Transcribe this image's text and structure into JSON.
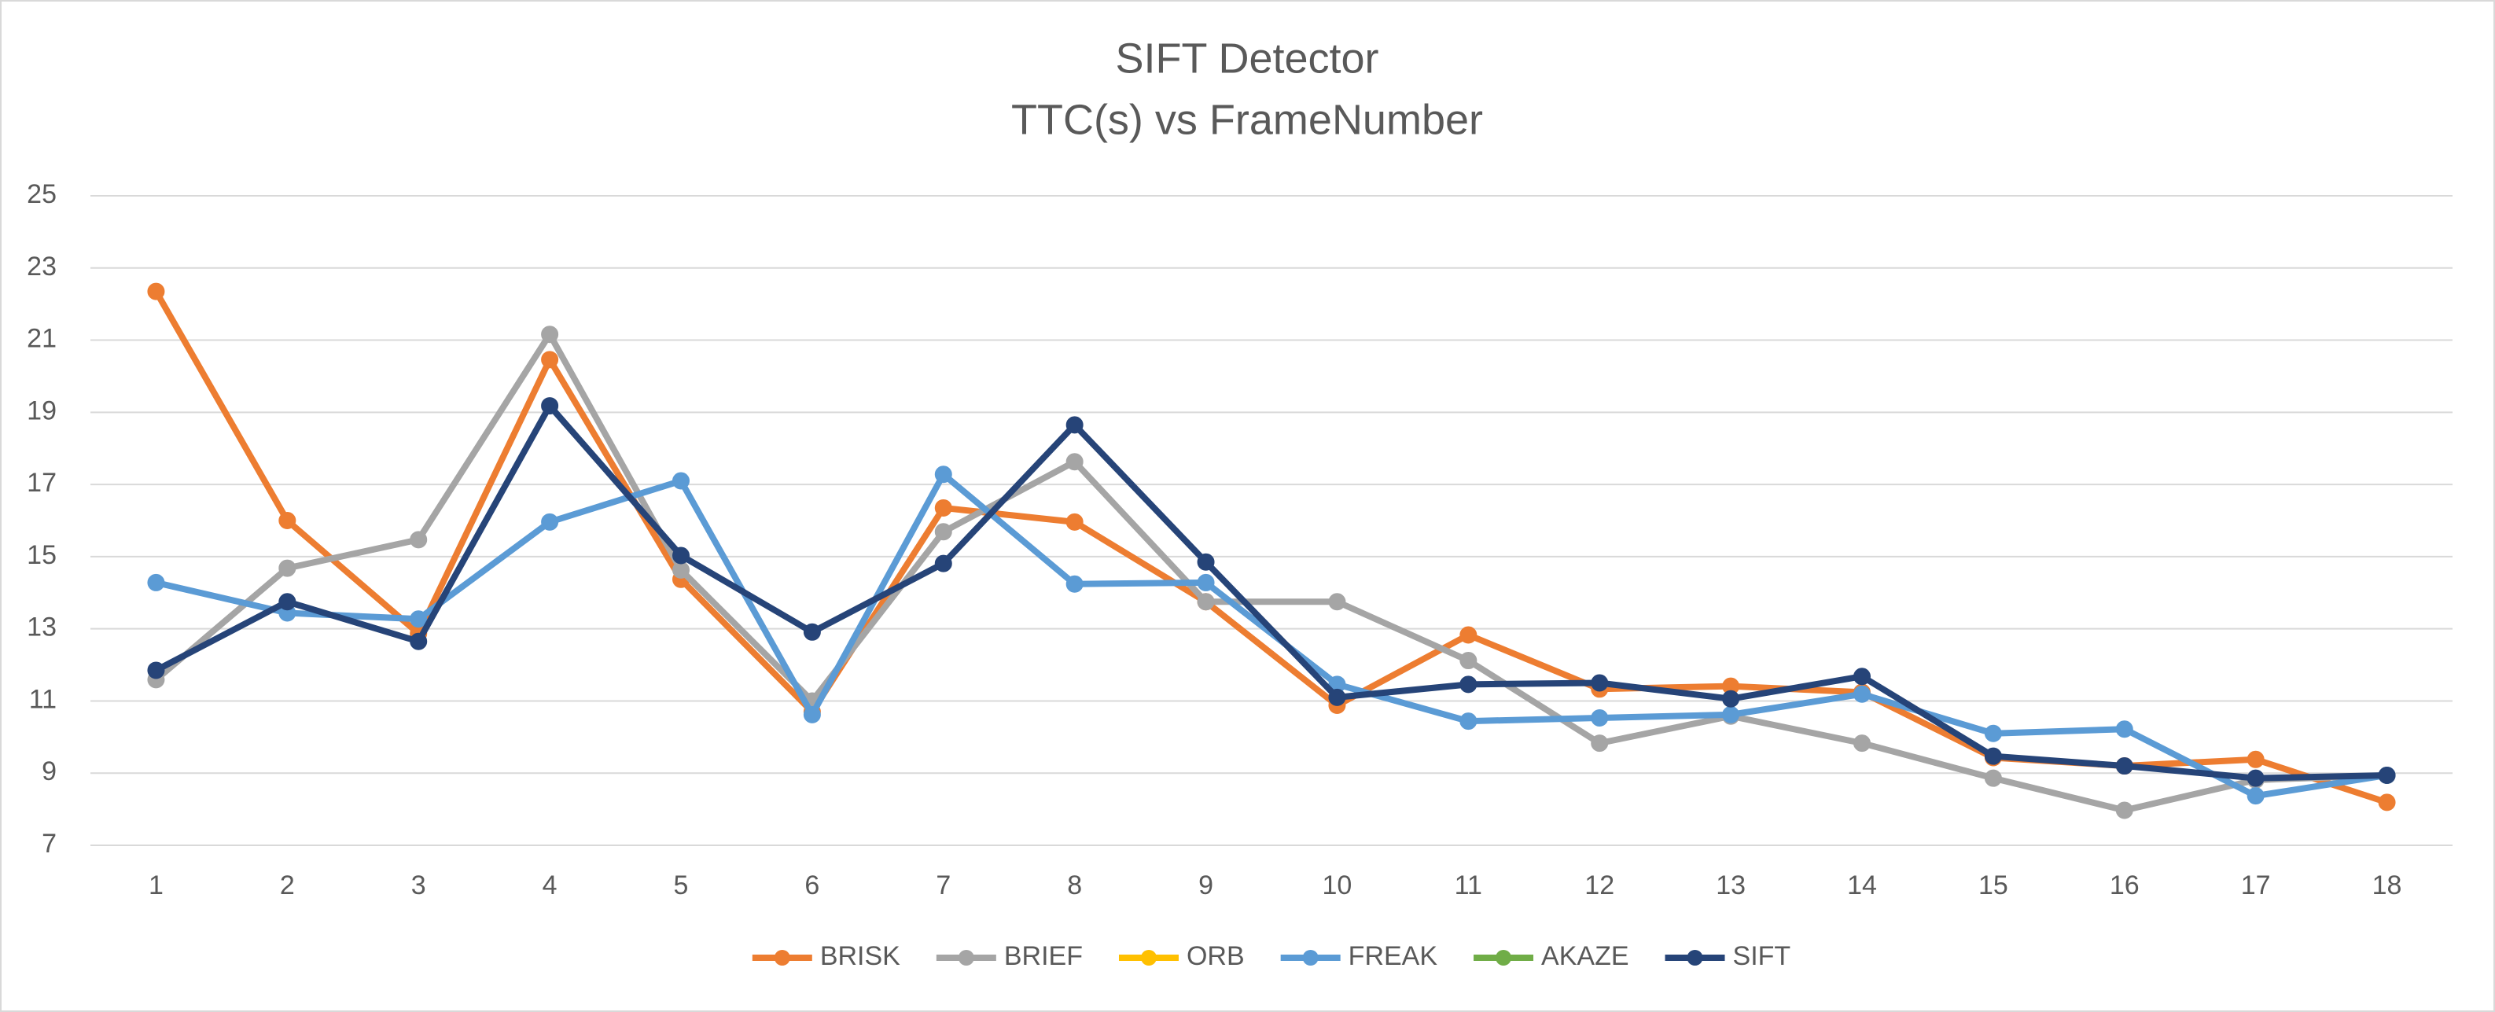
{
  "chart_data": {
    "type": "line",
    "title": "SIFT Detector",
    "subtitle": "TTC(s) vs FrameNumber",
    "categories": [
      "1",
      "2",
      "3",
      "4",
      "5",
      "6",
      "7",
      "8",
      "9",
      "10",
      "11",
      "12",
      "13",
      "14",
      "15",
      "16",
      "17",
      "18"
    ],
    "series": [
      {
        "name": "BRISK",
        "color": "#ed7d31",
        "values": [
          22.35,
          16.0,
          12.87,
          20.46,
          14.37,
          10.7,
          16.35,
          15.96,
          13.75,
          10.88,
          12.83,
          11.33,
          11.41,
          11.24,
          9.43,
          9.2,
          9.38,
          8.19
        ]
      },
      {
        "name": "BRIEF",
        "color": "#a5a5a5",
        "values": [
          11.59,
          14.68,
          15.47,
          21.16,
          14.63,
          11.0,
          15.69,
          17.63,
          13.75,
          13.75,
          12.12,
          9.83,
          10.58,
          9.83,
          8.86,
          7.97,
          8.81,
          8.94
        ]
      },
      {
        "name": "ORB",
        "color": "#ffc000",
        "values": [
          null,
          null,
          null,
          null,
          null,
          null,
          null,
          null,
          null,
          null,
          null,
          null,
          null,
          null,
          null,
          null,
          null,
          null
        ]
      },
      {
        "name": "FREAK",
        "color": "#5b9bd5",
        "values": [
          14.28,
          13.44,
          13.27,
          15.96,
          17.1,
          10.62,
          17.28,
          14.24,
          14.28,
          11.46,
          10.44,
          10.53,
          10.62,
          11.19,
          10.1,
          10.22,
          8.37,
          8.94
        ]
      },
      {
        "name": "AKAZE",
        "color": "#70ad47",
        "values": [
          null,
          null,
          null,
          null,
          null,
          null,
          null,
          null,
          null,
          null,
          null,
          null,
          null,
          null,
          null,
          null,
          null,
          null
        ]
      },
      {
        "name": "SIFT",
        "color": "#264478",
        "values": [
          11.85,
          13.75,
          12.65,
          19.18,
          15.03,
          12.91,
          14.81,
          18.65,
          14.85,
          11.1,
          11.46,
          11.5,
          11.06,
          11.68,
          9.47,
          9.2,
          8.86,
          8.94
        ]
      }
    ],
    "ylim": [
      7,
      25
    ],
    "yticks": [
      7,
      9,
      11,
      13,
      15,
      17,
      19,
      21,
      23,
      25
    ],
    "grid": true,
    "legend": "bottom"
  }
}
